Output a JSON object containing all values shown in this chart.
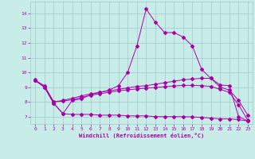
{
  "xlabel": "Windchill (Refroidissement éolien,°C)",
  "xlim": [
    -0.5,
    23.5
  ],
  "ylim": [
    6.5,
    14.8
  ],
  "xticks": [
    0,
    1,
    2,
    3,
    4,
    5,
    6,
    7,
    8,
    9,
    10,
    11,
    12,
    13,
    14,
    15,
    16,
    17,
    18,
    19,
    20,
    21,
    22,
    23
  ],
  "yticks": [
    7,
    8,
    9,
    10,
    11,
    12,
    13,
    14
  ],
  "background_color": "#c8ede8",
  "grid_color": "#a0c8c8",
  "line_color": "#aa00aa",
  "line1_x": [
    0,
    1,
    2,
    3,
    4,
    5,
    6,
    7,
    8,
    9,
    10,
    11,
    12,
    13,
    14,
    15,
    16,
    17,
    18,
    19,
    20,
    21,
    22,
    23
  ],
  "line1_y": [
    9.5,
    9.0,
    7.9,
    7.2,
    8.1,
    8.2,
    8.5,
    8.65,
    8.8,
    9.1,
    10.0,
    11.8,
    14.3,
    13.4,
    12.7,
    12.7,
    12.4,
    11.8,
    10.2,
    9.6,
    9.15,
    9.1,
    7.0,
    6.7
  ],
  "line2_x": [
    0,
    1,
    2,
    3,
    4,
    5,
    6,
    7,
    8,
    9,
    10,
    11,
    12,
    13,
    14,
    15,
    16,
    17,
    18,
    19,
    20,
    21,
    22,
    23
  ],
  "line2_y": [
    9.45,
    9.0,
    8.0,
    8.1,
    8.25,
    8.4,
    8.55,
    8.65,
    8.75,
    8.85,
    8.95,
    9.05,
    9.1,
    9.2,
    9.3,
    9.4,
    9.5,
    9.55,
    9.6,
    9.6,
    9.0,
    8.8,
    8.1,
    7.1
  ],
  "line3_x": [
    0,
    1,
    2,
    3,
    4,
    5,
    6,
    7,
    8,
    9,
    10,
    11,
    12,
    13,
    14,
    15,
    16,
    17,
    18,
    19,
    20,
    21,
    22,
    23
  ],
  "line3_y": [
    9.45,
    9.1,
    8.0,
    8.05,
    8.15,
    8.3,
    8.45,
    8.55,
    8.65,
    8.75,
    8.82,
    8.88,
    8.93,
    8.98,
    9.03,
    9.08,
    9.12,
    9.12,
    9.1,
    9.05,
    8.85,
    8.65,
    7.8,
    6.75
  ],
  "line4_x": [
    0,
    1,
    2,
    3,
    4,
    5,
    6,
    7,
    8,
    9,
    10,
    11,
    12,
    13,
    14,
    15,
    16,
    17,
    18,
    19,
    20,
    21,
    22,
    23
  ],
  "line4_y": [
    9.45,
    9.0,
    7.9,
    7.2,
    7.15,
    7.15,
    7.15,
    7.1,
    7.1,
    7.1,
    7.05,
    7.05,
    7.05,
    7.0,
    7.0,
    7.0,
    7.0,
    6.98,
    6.95,
    6.9,
    6.85,
    6.85,
    6.8,
    6.7
  ]
}
